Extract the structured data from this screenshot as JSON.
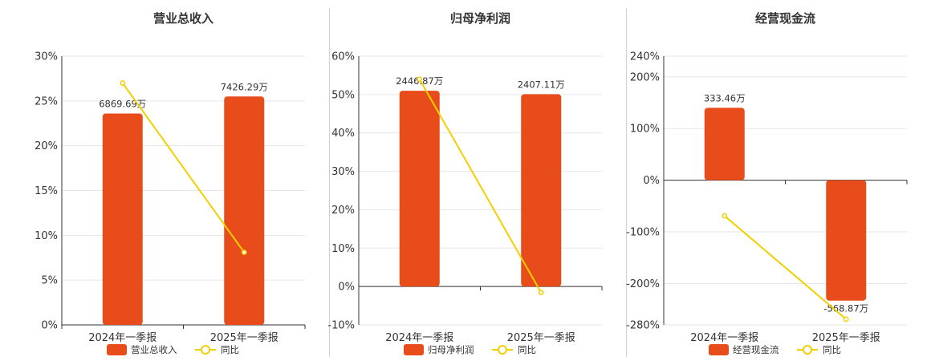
{
  "colors": {
    "bar": "#E84C1B",
    "line": "#F2CF00",
    "grid": "#e6e6e6",
    "axis": "#333333"
  },
  "chart_data": [
    {
      "type": "bar",
      "title": "营业总收入",
      "categories": [
        "2024年一季报",
        "2025年一季报"
      ],
      "series": [
        {
          "name": "营业总收入",
          "type": "bar",
          "values": [
            23.6,
            25.5
          ],
          "labels": [
            "6869.69万",
            "7426.29万"
          ]
        },
        {
          "name": "同比",
          "type": "line",
          "values": [
            27.0,
            8.1
          ]
        }
      ],
      "ylim": [
        0,
        30
      ],
      "yticks": [
        0,
        5,
        10,
        15,
        20,
        25,
        30
      ],
      "ytick_labels": [
        "0%",
        "5%",
        "10%",
        "15%",
        "20%",
        "25%",
        "30%"
      ],
      "legend": "bottom",
      "grid": true
    },
    {
      "type": "bar",
      "title": "归母净利润",
      "categories": [
        "2024年一季报",
        "2025年一季报"
      ],
      "series": [
        {
          "name": "归母净利润",
          "type": "bar",
          "values": [
            51.0,
            50.1
          ],
          "labels": [
            "2446.87万",
            "2407.11万"
          ]
        },
        {
          "name": "同比",
          "type": "line",
          "values": [
            54.0,
            -1.6
          ]
        }
      ],
      "ylim": [
        -10,
        60
      ],
      "yticks": [
        -10,
        0,
        10,
        20,
        30,
        40,
        50,
        60
      ],
      "ytick_labels": [
        "-10%",
        "0%",
        "10%",
        "20%",
        "30%",
        "40%",
        "50%",
        "60%"
      ],
      "legend": "bottom",
      "grid": true
    },
    {
      "type": "bar",
      "title": "经营现金流",
      "categories": [
        "2024年一季报",
        "2025年一季报"
      ],
      "series": [
        {
          "name": "经营现金流",
          "type": "bar",
          "values": [
            140,
            -233
          ],
          "labels": [
            "333.46万",
            "-568.87万"
          ]
        },
        {
          "name": "同比",
          "type": "line",
          "values": [
            -69,
            -269
          ]
        }
      ],
      "ylim": [
        -280,
        240
      ],
      "yticks": [
        -280,
        -200,
        -100,
        0,
        100,
        200,
        240
      ],
      "ytick_labels": [
        "-280%",
        "-200%",
        "-100%",
        "0%",
        "100%",
        "200%",
        "240%"
      ],
      "legend": "bottom",
      "grid": true
    }
  ]
}
